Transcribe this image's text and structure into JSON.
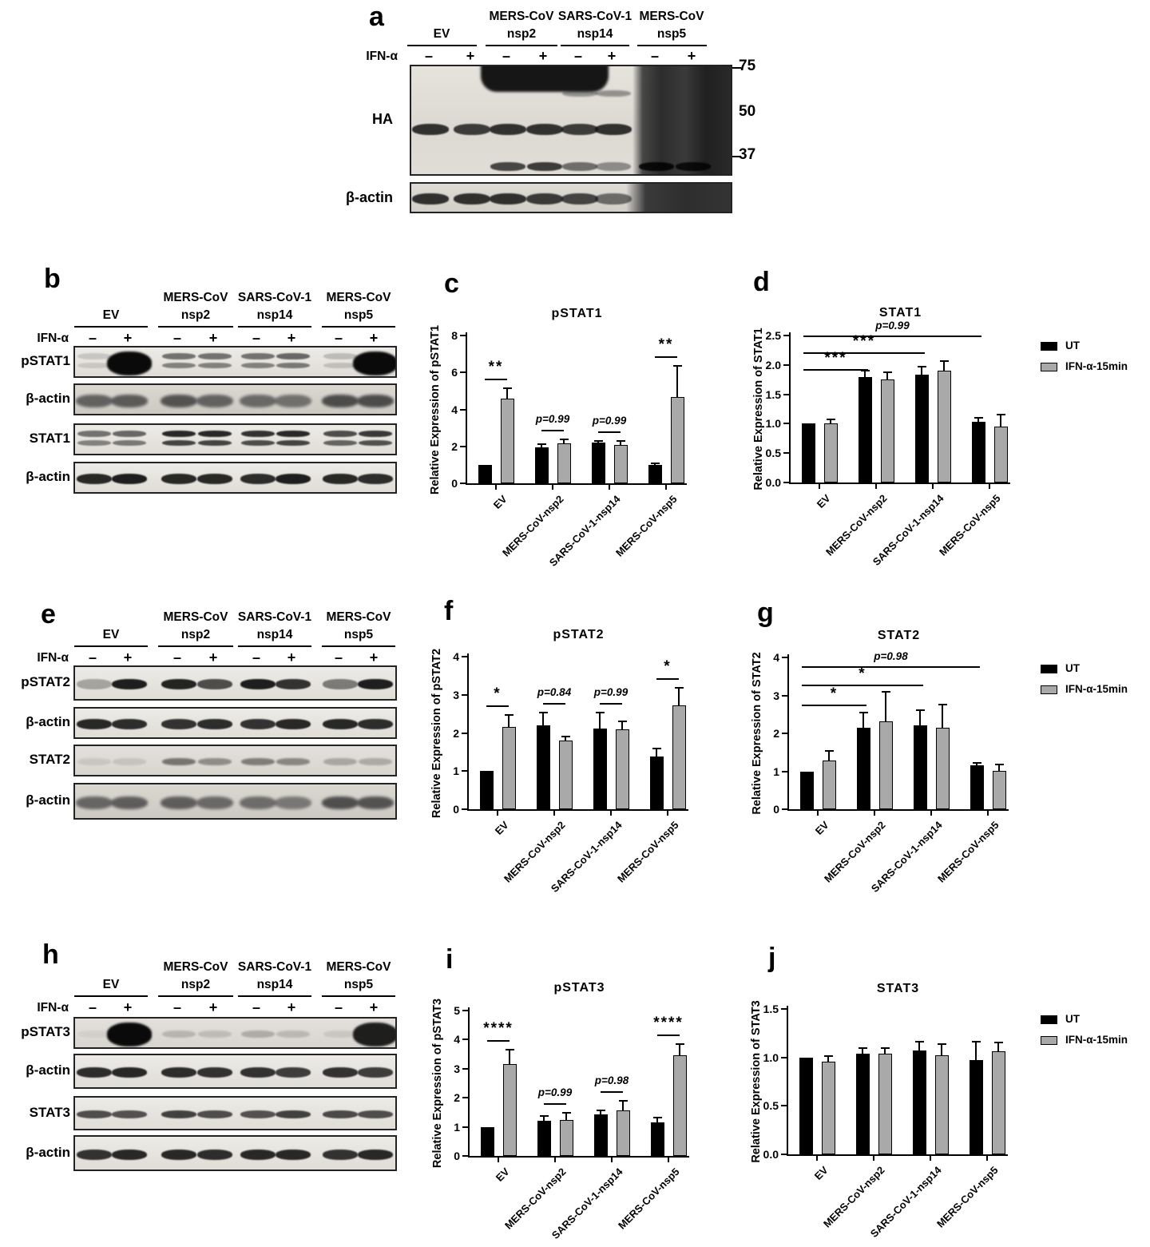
{
  "colors": {
    "ut_bar": "#000000",
    "ifn_bar": "#a9a9a9",
    "axis": "#000000",
    "background": "#ffffff"
  },
  "legend": {
    "items": [
      {
        "label": "UT",
        "color": "#000000"
      },
      {
        "label": "IFN-α-15min",
        "color": "#a9a9a9"
      }
    ]
  },
  "lane_groups": {
    "line1": [
      "",
      "MERS-CoV",
      "SARS-CoV-1",
      "MERS-CoV"
    ],
    "line2": [
      "EV",
      "nsp2",
      "nsp14",
      "nsp5"
    ]
  },
  "ifn_row_label": "IFN-α",
  "lane_signs": [
    "–",
    "+",
    "–",
    "+",
    "–",
    "+",
    "–",
    "+"
  ],
  "panels": {
    "a": {
      "letter": "a",
      "row_labels": [
        "HA",
        "β-actin"
      ],
      "mw_markers": [
        "75",
        "50",
        "37"
      ],
      "ha_bands": [
        0.85,
        0.8,
        0.85,
        0.85,
        0.8,
        0.85,
        0,
        0
      ],
      "ha_lower_bands": [
        0,
        0,
        0.75,
        0.8,
        0.55,
        0.4,
        0.85,
        0.8
      ],
      "ha_upper_blob_lanes": [
        2,
        3
      ],
      "ha_faint_upper_lanes": [
        4,
        5
      ],
      "ha_smear_lanes": [
        6,
        7
      ],
      "actin_bands": [
        0.85,
        0.85,
        0.85,
        0.8,
        0.75,
        0.55,
        0,
        0
      ]
    },
    "b": {
      "letter": "b",
      "rows": [
        {
          "label": "pSTAT1",
          "style": "double",
          "bands": [
            0.15,
            1,
            0.55,
            0.55,
            0.55,
            0.6,
            0.2,
            0.95
          ],
          "blob_lanes": [
            1,
            7
          ]
        },
        {
          "label": "β-actin",
          "style": "soft",
          "bands": [
            0.75,
            0.8,
            0.85,
            0.75,
            0.7,
            0.65,
            0.9,
            0.9
          ]
        },
        {
          "label": "STAT1",
          "style": "double",
          "bands": [
            0.55,
            0.6,
            0.9,
            0.9,
            0.85,
            0.9,
            0.72,
            0.82
          ]
        },
        {
          "label": "β-actin",
          "style": "single",
          "bands": [
            0.9,
            0.95,
            0.9,
            0.9,
            0.88,
            0.95,
            0.9,
            0.88
          ]
        }
      ]
    },
    "e": {
      "letter": "e",
      "rows": [
        {
          "label": "pSTAT2",
          "style": "single",
          "bands": [
            0.3,
            0.95,
            0.92,
            0.72,
            0.95,
            0.85,
            0.5,
            0.95
          ]
        },
        {
          "label": "β-actin",
          "style": "single",
          "bands": [
            0.9,
            0.88,
            0.85,
            0.88,
            0.85,
            0.9,
            0.9,
            0.88
          ]
        },
        {
          "label": "STAT2",
          "style": "thin",
          "bands": [
            0.1,
            0.12,
            0.55,
            0.42,
            0.5,
            0.45,
            0.28,
            0.26
          ]
        },
        {
          "label": "β-actin",
          "style": "soft",
          "bands": [
            0.72,
            0.78,
            0.78,
            0.7,
            0.68,
            0.6,
            0.88,
            0.85
          ]
        }
      ]
    },
    "h": {
      "letter": "h",
      "rows": [
        {
          "label": "pSTAT3",
          "style": "thin",
          "bands": [
            0.05,
            1,
            0.2,
            0.16,
            0.25,
            0.18,
            0.1,
            0.85
          ],
          "blob_lanes": [
            1,
            7
          ]
        },
        {
          "label": "β-actin",
          "style": "single",
          "bands": [
            0.88,
            0.9,
            0.88,
            0.85,
            0.85,
            0.8,
            0.85,
            0.8
          ]
        },
        {
          "label": "STAT3",
          "style": "thin2",
          "bands": [
            0.72,
            0.7,
            0.78,
            0.72,
            0.7,
            0.78,
            0.74,
            0.72
          ]
        },
        {
          "label": "β-actin",
          "style": "single",
          "bands": [
            0.85,
            0.9,
            0.9,
            0.88,
            0.9,
            0.9,
            0.85,
            0.9
          ]
        }
      ]
    }
  },
  "chart_data": [
    {
      "id": "c",
      "letter": "c",
      "type": "bar",
      "title": "pSTAT1",
      "ylabel": "Relative Expression of pSTAT1",
      "ylim": [
        0,
        8
      ],
      "yticks": [
        "0",
        "2",
        "4",
        "6",
        "8"
      ],
      "grid": false,
      "legend_position": "none",
      "categories": [
        "EV",
        "MERS-CoV-nsp2",
        "SARS-CoV-1-nsp14",
        "MERS-CoV-nsp5"
      ],
      "series": [
        {
          "name": "UT",
          "values": [
            1.0,
            1.95,
            2.2,
            0.98
          ],
          "errors": [
            0,
            0.15,
            0.08,
            0.1
          ]
        },
        {
          "name": "IFN-α-15min",
          "values": [
            4.6,
            2.16,
            2.08,
            4.65
          ],
          "errors": [
            0.55,
            0.22,
            0.2,
            1.7
          ]
        }
      ],
      "pair_annotations": [
        "**",
        "p=0.99",
        "p=0.99",
        "**"
      ]
    },
    {
      "id": "d",
      "letter": "d",
      "type": "bar",
      "title": "STAT1",
      "ylabel": "Relative Expression of STAT1",
      "ylim": [
        0,
        2.5
      ],
      "yticks": [
        "0.0",
        "0.5",
        "1.0",
        "1.5",
        "2.0",
        "2.5"
      ],
      "grid": false,
      "legend_position": "right",
      "categories": [
        "EV",
        "MERS-CoV-nsp2",
        "SARS-CoV-1-nsp14",
        "MERS-CoV-nsp5"
      ],
      "series": [
        {
          "name": "UT",
          "values": [
            1.0,
            1.8,
            1.83,
            1.03
          ],
          "errors": [
            0,
            0.1,
            0.14,
            0.07
          ]
        },
        {
          "name": "IFN-α-15min",
          "values": [
            1.01,
            1.75,
            1.9,
            0.95
          ],
          "errors": [
            0.07,
            0.13,
            0.17,
            0.2
          ]
        }
      ],
      "bracket_annotations": [
        {
          "from": 0,
          "to": 1,
          "y": 1.93,
          "text": "***"
        },
        {
          "from": 0,
          "to": 2,
          "y": 2.21,
          "text": "***"
        },
        {
          "from": 0,
          "to": 3,
          "y": 2.5,
          "text": "p=0.99"
        }
      ]
    },
    {
      "id": "f",
      "letter": "f",
      "type": "bar",
      "title": "pSTAT2",
      "ylabel": "Relative Expression of pSTAT2",
      "ylim": [
        0,
        4
      ],
      "yticks": [
        "0",
        "1",
        "2",
        "3",
        "4"
      ],
      "grid": false,
      "legend_position": "none",
      "categories": [
        "EV",
        "MERS-CoV-nsp2",
        "SARS-CoV-1-nsp14",
        "MERS-CoV-nsp5"
      ],
      "series": [
        {
          "name": "UT",
          "values": [
            1.0,
            2.2,
            2.12,
            1.38
          ],
          "errors": [
            0,
            0.34,
            0.42,
            0.21
          ]
        },
        {
          "name": "IFN-α-15min",
          "values": [
            2.16,
            1.8,
            2.09,
            2.72
          ],
          "errors": [
            0.31,
            0.1,
            0.21,
            0.47
          ]
        }
      ],
      "pair_annotations": [
        "*",
        "p=0.84",
        "p=0.99",
        "*"
      ]
    },
    {
      "id": "g",
      "letter": "g",
      "type": "bar",
      "title": "STAT2",
      "ylabel": "Relative Expression of STAT2",
      "ylim": [
        0,
        4
      ],
      "yticks": [
        "0",
        "1",
        "2",
        "3",
        "4"
      ],
      "grid": false,
      "legend_position": "right",
      "categories": [
        "EV",
        "MERS-CoV-nsp2",
        "SARS-CoV-1-nsp14",
        "MERS-CoV-nsp5"
      ],
      "series": [
        {
          "name": "UT",
          "values": [
            1.0,
            2.15,
            2.21,
            1.16
          ],
          "errors": [
            0,
            0.4,
            0.4,
            0.07
          ]
        },
        {
          "name": "IFN-α-15min",
          "values": [
            1.28,
            2.32,
            2.15,
            1.02
          ],
          "errors": [
            0.25,
            0.77,
            0.6,
            0.15
          ]
        }
      ],
      "bracket_annotations": [
        {
          "from": 0,
          "to": 1,
          "y": 2.76,
          "text": "*"
        },
        {
          "from": 0,
          "to": 2,
          "y": 3.28,
          "text": "*"
        },
        {
          "from": 0,
          "to": 3,
          "y": 3.77,
          "text": "p=0.98"
        }
      ]
    },
    {
      "id": "i",
      "letter": "i",
      "type": "bar",
      "title": "pSTAT3",
      "ylabel": "Relative Expression of pSTAT3",
      "ylim": [
        0,
        5
      ],
      "yticks": [
        "0",
        "1",
        "2",
        "3",
        "4",
        "5"
      ],
      "grid": false,
      "legend_position": "none",
      "categories": [
        "EV",
        "MERS-CoV-nsp2",
        "SARS-CoV-1-nsp14",
        "MERS-CoV-nsp5"
      ],
      "series": [
        {
          "name": "UT",
          "values": [
            1.0,
            1.2,
            1.43,
            1.15
          ],
          "errors": [
            0,
            0.17,
            0.14,
            0.17
          ]
        },
        {
          "name": "IFN-α-15min",
          "values": [
            3.15,
            1.25,
            1.57,
            3.45
          ],
          "errors": [
            0.5,
            0.22,
            0.33,
            0.4
          ]
        }
      ],
      "pair_annotations": [
        "****",
        "p=0.99",
        "p=0.98",
        "****"
      ]
    },
    {
      "id": "j",
      "letter": "j",
      "type": "bar",
      "title": "STAT3",
      "ylabel": "Relative Expression of STAT3",
      "ylim": [
        0,
        1.5
      ],
      "yticks": [
        "0.0",
        "0.5",
        "1.0",
        "1.5"
      ],
      "grid": false,
      "legend_position": "right",
      "categories": [
        "EV",
        "MERS-CoV-nsp2",
        "SARS-CoV-1-nsp14",
        "MERS-CoV-nsp5"
      ],
      "series": [
        {
          "name": "UT",
          "values": [
            1.0,
            1.04,
            1.07,
            0.97
          ],
          "errors": [
            0,
            0.06,
            0.09,
            0.19
          ]
        },
        {
          "name": "IFN-α-15min",
          "values": [
            0.96,
            1.04,
            1.02,
            1.06
          ],
          "errors": [
            0.05,
            0.06,
            0.12,
            0.09
          ]
        }
      ],
      "pair_annotations": [
        "",
        "",
        "",
        ""
      ]
    }
  ]
}
